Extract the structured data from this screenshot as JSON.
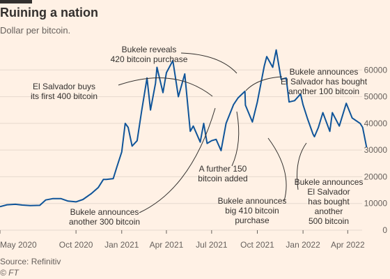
{
  "header": {
    "title": "Ruining a nation",
    "subtitle": "Dollar per bitcoin."
  },
  "footer": {
    "source": "Source: Refinitiv",
    "credit": "© FT"
  },
  "colors": {
    "background": "#FFF1E5",
    "line": "#0F5499",
    "grid": "#E6D9CE",
    "text": "#33302E"
  },
  "chart_data": {
    "type": "line",
    "title": "Ruining a nation",
    "subtitle": "Dollar per bitcoin.",
    "ylim": [
      0,
      70000
    ],
    "xlim": [
      "2020-05-01",
      "2022-04-30"
    ],
    "y_ticks": [
      0,
      10000,
      20000,
      30000,
      40000,
      50000,
      60000
    ],
    "y_tick_labels": [
      "0",
      "10000",
      "20000",
      "30000",
      "40000",
      "50000",
      "60000"
    ],
    "x_ticks": [
      "2020-05-01",
      "2020-10-01",
      "2021-01-01",
      "2021-04-01",
      "2021-07-01",
      "2021-10-01",
      "2022-01-01",
      "2022-04-01"
    ],
    "x_tick_labels": [
      "May 2020",
      "Oct 2020",
      "Jan 2021",
      "Apr 2021",
      "Jul 2021",
      "Oct 2021",
      "Jan 2022",
      "Apr 2022"
    ],
    "grid": true,
    "series": [
      {
        "points": [
          [
            "2020-05-01",
            8800
          ],
          [
            "2020-05-15",
            9500
          ],
          [
            "2020-06-01",
            9700
          ],
          [
            "2020-06-15",
            9400
          ],
          [
            "2020-07-01",
            9200
          ],
          [
            "2020-07-20",
            9300
          ],
          [
            "2020-08-01",
            11300
          ],
          [
            "2020-08-15",
            11800
          ],
          [
            "2020-09-01",
            11800
          ],
          [
            "2020-09-15",
            10900
          ],
          [
            "2020-10-01",
            10600
          ],
          [
            "2020-10-15",
            11500
          ],
          [
            "2020-11-01",
            13700
          ],
          [
            "2020-11-15",
            16000
          ],
          [
            "2020-11-25",
            19000
          ],
          [
            "2020-12-01",
            19000
          ],
          [
            "2020-12-15",
            19300
          ],
          [
            "2020-12-22",
            23500
          ],
          [
            "2021-01-01",
            29300
          ],
          [
            "2021-01-08",
            40000
          ],
          [
            "2021-01-14",
            38500
          ],
          [
            "2021-01-22",
            31500
          ],
          [
            "2021-02-01",
            33500
          ],
          [
            "2021-02-10",
            44500
          ],
          [
            "2021-02-21",
            57000
          ],
          [
            "2021-02-28",
            45000
          ],
          [
            "2021-03-10",
            55000
          ],
          [
            "2021-03-13",
            61000
          ],
          [
            "2021-03-25",
            51500
          ],
          [
            "2021-04-01",
            59000
          ],
          [
            "2021-04-14",
            63500
          ],
          [
            "2021-04-25",
            50000
          ],
          [
            "2021-05-08",
            58500
          ],
          [
            "2021-05-19",
            37000
          ],
          [
            "2021-05-25",
            39000
          ],
          [
            "2021-06-08",
            33000
          ],
          [
            "2021-06-15",
            40000
          ],
          [
            "2021-06-22",
            32500
          ],
          [
            "2021-07-01",
            33500
          ],
          [
            "2021-07-10",
            34000
          ],
          [
            "2021-07-20",
            29800
          ],
          [
            "2021-07-30",
            40000
          ],
          [
            "2021-08-14",
            47000
          ],
          [
            "2021-08-23",
            49500
          ],
          [
            "2021-09-06",
            52000
          ],
          [
            "2021-09-07",
            46800
          ],
          [
            "2021-09-21",
            40500
          ],
          [
            "2021-10-01",
            48000
          ],
          [
            "2021-10-15",
            61500
          ],
          [
            "2021-10-20",
            65000
          ],
          [
            "2021-11-01",
            61000
          ],
          [
            "2021-11-08",
            67500
          ],
          [
            "2021-11-18",
            56500
          ],
          [
            "2021-11-28",
            57000
          ],
          [
            "2021-12-04",
            48000
          ],
          [
            "2021-12-15",
            48500
          ],
          [
            "2021-12-27",
            51000
          ],
          [
            "2022-01-01",
            47000
          ],
          [
            "2022-01-10",
            41800
          ],
          [
            "2022-01-21",
            36000
          ],
          [
            "2022-01-24",
            35000
          ],
          [
            "2022-02-01",
            38500
          ],
          [
            "2022-02-10",
            44000
          ],
          [
            "2022-02-24",
            37000
          ],
          [
            "2022-03-01",
            44000
          ],
          [
            "2022-03-15",
            39000
          ],
          [
            "2022-03-29",
            47500
          ],
          [
            "2022-04-10",
            42000
          ],
          [
            "2022-04-26",
            40000
          ],
          [
            "2022-05-01",
            38500
          ],
          [
            "2022-05-09",
            31000
          ]
        ]
      }
    ],
    "annotations": [
      {
        "lines": [
          "El Salvador buys",
          "its first 400 bitcoin"
        ]
      },
      {
        "lines": [
          "Bukele reveals",
          "420 bitcoin purchase"
        ]
      },
      {
        "lines": [
          "Bukele announces",
          "El Salvador has bought",
          "another 100 bitcoin"
        ]
      },
      {
        "lines": [
          "A further 150",
          "bitcoin added"
        ]
      },
      {
        "lines": [
          "Bukele announces",
          "another 300 bitcoin"
        ]
      },
      {
        "lines": [
          "Bukele announces",
          "big 410 bitcoin",
          "purchase"
        ]
      },
      {
        "lines": [
          "Bukele announces",
          "El Salvador",
          "has bought",
          "another",
          "500 bitcoin"
        ]
      }
    ]
  }
}
